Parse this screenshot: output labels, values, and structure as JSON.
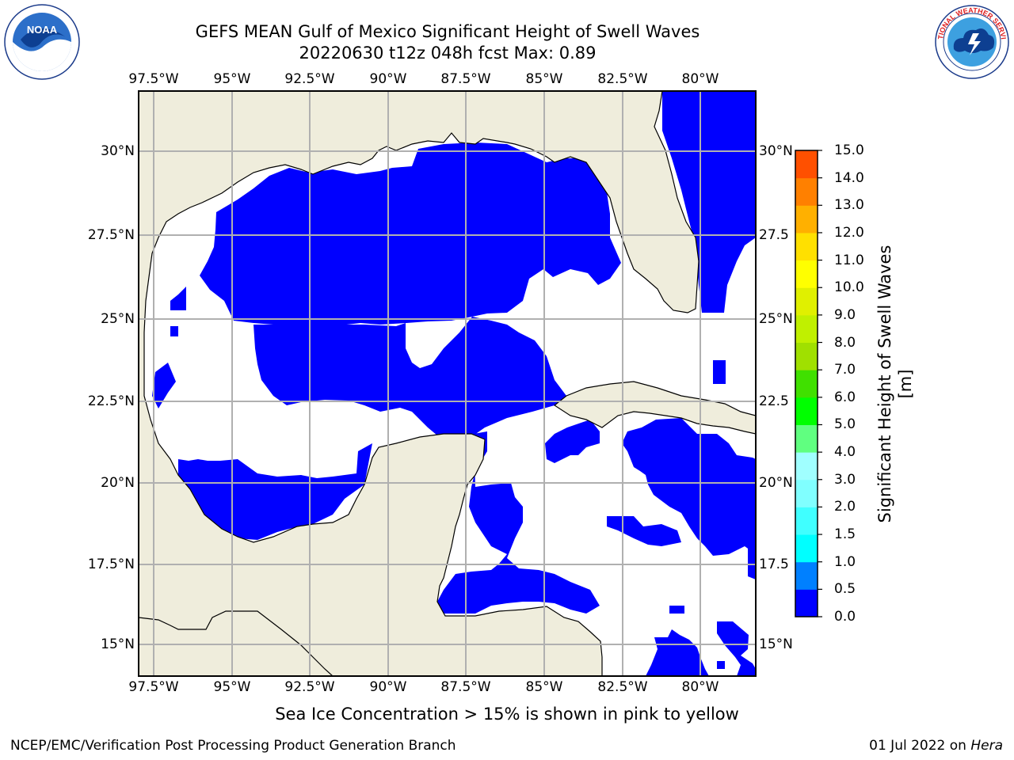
{
  "header": {
    "title_line1": "GEFS MEAN Gulf of Mexico Significant Height of Swell Waves",
    "title_line2": "20220630 t12z 048h fcst   Max: 0.89"
  },
  "map": {
    "lon_labels": [
      "97.5°W",
      "95°W",
      "92.5°W",
      "90°W",
      "87.5°W",
      "85°W",
      "82.5°W",
      "80°W"
    ],
    "lat_labels_left": [
      "30°N",
      "27.5°N",
      "25°N",
      "22.5°N",
      "20°N",
      "17.5°N",
      "15°N"
    ],
    "lat_labels_right": [
      "30°N",
      "27.5",
      "25°N",
      "22.5",
      "20°N",
      "17.5",
      "15°N"
    ],
    "colors": {
      "land": "#efeddc",
      "ocean_low": "#0000ff",
      "ocean_mid": "#0080ff",
      "grid": "#b0b0b0",
      "coast": "#000000"
    }
  },
  "colorbar": {
    "label": "Significant Height of Swell Waves [m]",
    "ticks": [
      "15.0",
      "14.0",
      "13.0",
      "12.0",
      "11.0",
      "10.0",
      "9.0",
      "8.0",
      "7.0",
      "6.0",
      "5.0",
      "4.0",
      "3.0",
      "2.0",
      "1.5",
      "1.0",
      "0.5",
      "0.0"
    ],
    "bands_bottom_to_top": [
      "#0000ff",
      "#0080ff",
      "#00ffff",
      "#40ffff",
      "#80ffff",
      "#a0ffff",
      "#60ff80",
      "#00ff00",
      "#40e000",
      "#a0e000",
      "#c0f000",
      "#e0f000",
      "#ffff00",
      "#ffe000",
      "#ffb000",
      "#ff8000",
      "#ff5000",
      "#ff2000",
      "#ff0000"
    ]
  },
  "notes": {
    "ice": "Sea Ice Concentration > 15% is shown in pink to yellow"
  },
  "footer": {
    "left": "NCEP/EMC/Verification Post Processing Product Generation Branch",
    "right_date": "01 Jul 2022 on ",
    "right_machine": "Hera"
  },
  "logos": {
    "noaa_text": "NOAA",
    "nws_text": "NATIONAL WEATHER SERVICE"
  }
}
